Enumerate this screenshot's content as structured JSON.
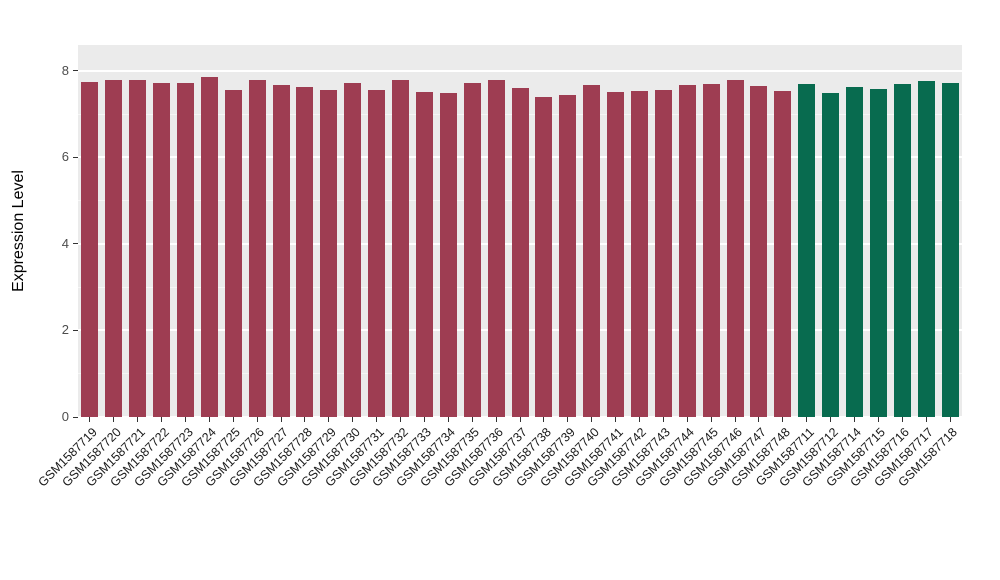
{
  "chart_data": {
    "type": "bar",
    "title": "",
    "xlabel": "",
    "ylabel": "Expression Level",
    "ylim": [
      0,
      8.6
    ],
    "yticks": [
      0,
      2,
      4,
      6,
      8
    ],
    "yticks_minor": [
      1,
      3,
      5,
      7
    ],
    "grid": "white major and minor horizontal lines on gray panel",
    "legend": null,
    "panel_background": "#ebebeb",
    "group_colors": {
      "groupA": "#9e3d52",
      "groupB": "#086b4f"
    },
    "bars": [
      {
        "label": "GSM1587719",
        "value": 7.75,
        "group": "groupA"
      },
      {
        "label": "GSM1587720",
        "value": 7.78,
        "group": "groupA"
      },
      {
        "label": "GSM1587721",
        "value": 7.8,
        "group": "groupA"
      },
      {
        "label": "GSM1587722",
        "value": 7.72,
        "group": "groupA"
      },
      {
        "label": "GSM1587723",
        "value": 7.72,
        "group": "groupA"
      },
      {
        "label": "GSM1587724",
        "value": 7.85,
        "group": "groupA"
      },
      {
        "label": "GSM1587725",
        "value": 7.55,
        "group": "groupA"
      },
      {
        "label": "GSM1587726",
        "value": 7.78,
        "group": "groupA"
      },
      {
        "label": "GSM1587727",
        "value": 7.68,
        "group": "groupA"
      },
      {
        "label": "GSM1587728",
        "value": 7.62,
        "group": "groupA"
      },
      {
        "label": "GSM1587729",
        "value": 7.55,
        "group": "groupA"
      },
      {
        "label": "GSM1587730",
        "value": 7.72,
        "group": "groupA"
      },
      {
        "label": "GSM1587731",
        "value": 7.55,
        "group": "groupA"
      },
      {
        "label": "GSM1587732",
        "value": 7.8,
        "group": "groupA"
      },
      {
        "label": "GSM1587733",
        "value": 7.52,
        "group": "groupA"
      },
      {
        "label": "GSM1587734",
        "value": 7.5,
        "group": "groupA"
      },
      {
        "label": "GSM1587735",
        "value": 7.73,
        "group": "groupA"
      },
      {
        "label": "GSM1587736",
        "value": 7.78,
        "group": "groupA"
      },
      {
        "label": "GSM1587737",
        "value": 7.6,
        "group": "groupA"
      },
      {
        "label": "GSM1587738",
        "value": 7.4,
        "group": "groupA"
      },
      {
        "label": "GSM1587739",
        "value": 7.45,
        "group": "groupA"
      },
      {
        "label": "GSM1587740",
        "value": 7.68,
        "group": "groupA"
      },
      {
        "label": "GSM1587741",
        "value": 7.52,
        "group": "groupA"
      },
      {
        "label": "GSM1587742",
        "value": 7.53,
        "group": "groupA"
      },
      {
        "label": "GSM1587743",
        "value": 7.57,
        "group": "groupA"
      },
      {
        "label": "GSM1587744",
        "value": 7.67,
        "group": "groupA"
      },
      {
        "label": "GSM1587745",
        "value": 7.7,
        "group": "groupA"
      },
      {
        "label": "GSM1587746",
        "value": 7.78,
        "group": "groupA"
      },
      {
        "label": "GSM1587747",
        "value": 7.65,
        "group": "groupA"
      },
      {
        "label": "GSM1587748",
        "value": 7.53,
        "group": "groupA"
      },
      {
        "label": "GSM1587711",
        "value": 7.7,
        "group": "groupB"
      },
      {
        "label": "GSM1587712",
        "value": 7.5,
        "group": "groupB"
      },
      {
        "label": "GSM1587714",
        "value": 7.63,
        "group": "groupB"
      },
      {
        "label": "GSM1587715",
        "value": 7.58,
        "group": "groupB"
      },
      {
        "label": "GSM1587716",
        "value": 7.7,
        "group": "groupB"
      },
      {
        "label": "GSM1587717",
        "value": 7.77,
        "group": "groupB"
      },
      {
        "label": "GSM1587718",
        "value": 7.72,
        "group": "groupB"
      }
    ]
  }
}
